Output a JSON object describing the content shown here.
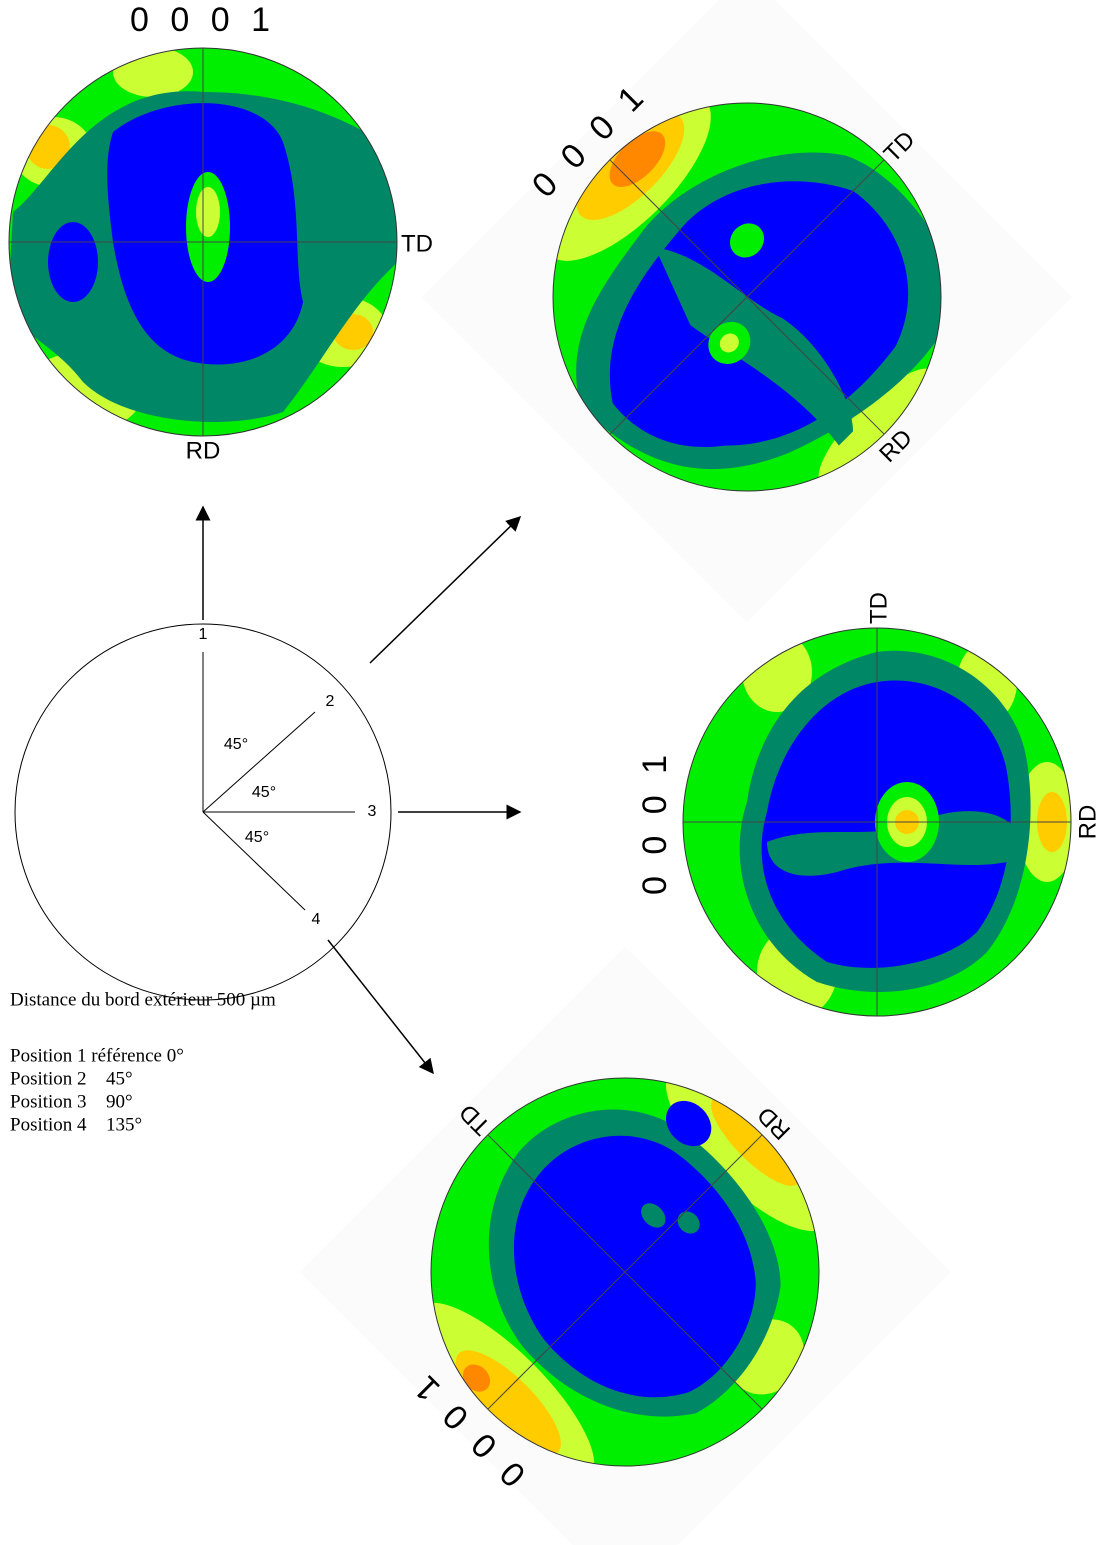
{
  "pole_figures": [
    {
      "pole": "0 0 0 1",
      "x_axis": "TD",
      "y_axis": "RD"
    },
    {
      "pole": "0 0 0 1",
      "x_axis": "TD",
      "y_axis": "RD"
    },
    {
      "pole": "0 0 0 1",
      "x_axis": "TD",
      "y_axis": "RD"
    },
    {
      "pole": "0 0 0 1",
      "x_axis": "TD",
      "y_axis": "RD"
    }
  ],
  "diagram": {
    "positions": [
      "1",
      "2",
      "3",
      "4"
    ],
    "angles": [
      "45°",
      "45°",
      "45°"
    ]
  },
  "notes": {
    "distance": "Distance du bord extérieur 500 µm",
    "reference": "Position 1 référence 0°",
    "positions": [
      {
        "label": "Position 2",
        "angle": "45°"
      },
      {
        "label": "Position 3",
        "angle": "90°"
      },
      {
        "label": "Position 4",
        "angle": "135°"
      }
    ]
  }
}
